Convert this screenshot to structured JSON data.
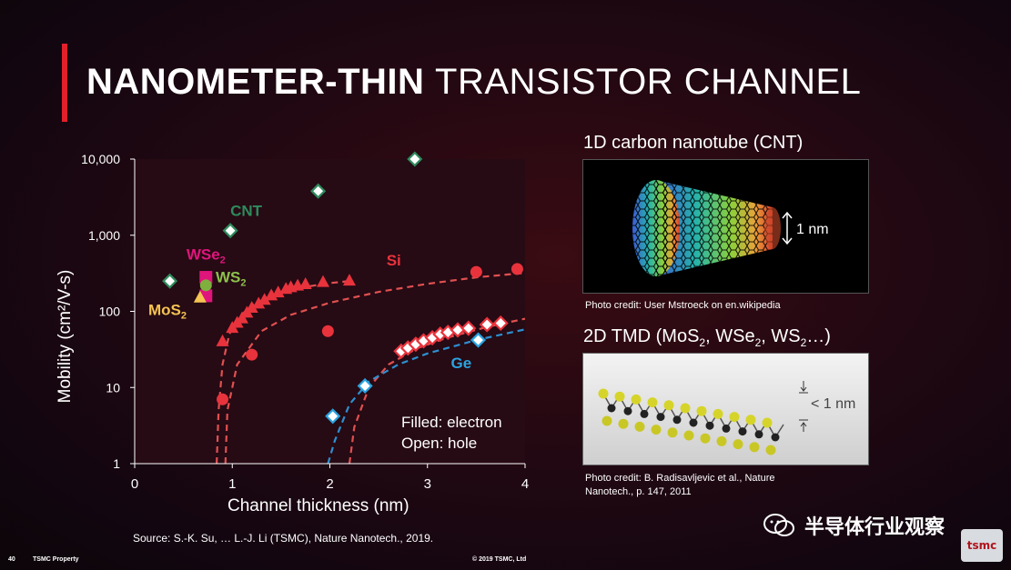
{
  "slide": {
    "title_bold": "NANOMETER-THIN",
    "title_light": "TRANSISTOR CHANNEL",
    "accent_color": "#e0202a"
  },
  "chart_data": {
    "type": "scatter",
    "xlabel": "Channel thickness (nm)",
    "ylabel": "Mobility (cm²/V-s)",
    "xlim": [
      0,
      4
    ],
    "ylim": [
      1,
      10000
    ],
    "yscale": "log",
    "x_ticks": [
      "0",
      "1",
      "2",
      "3",
      "4"
    ],
    "y_ticks": [
      "1",
      "10",
      "100",
      "1,000",
      "10,000"
    ],
    "grid": false,
    "annotation": [
      "Filled: electron",
      "Open: hole"
    ],
    "series": [
      {
        "name": "CNT",
        "color": "#2e8a5c",
        "marker": "diamond-open",
        "points": [
          [
            0.36,
            250
          ],
          [
            0.98,
            1150
          ],
          [
            1.88,
            3800
          ],
          [
            2.87,
            10000
          ]
        ]
      },
      {
        "name": "WSe2",
        "color": "#e0157c",
        "marker": "square",
        "points": [
          [
            0.73,
            280
          ],
          [
            0.73,
            160
          ]
        ]
      },
      {
        "name": "WS2",
        "color": "#7fb03e",
        "marker": "circle",
        "points": [
          [
            0.73,
            220
          ]
        ]
      },
      {
        "name": "MoS2",
        "color": "#f5c452",
        "marker": "triangle",
        "points": [
          [
            0.67,
            150
          ]
        ]
      },
      {
        "name": "Si",
        "color": "#e8333c",
        "marker": "triangle",
        "points": [
          [
            0.9,
            40
          ],
          [
            1.0,
            60
          ],
          [
            1.05,
            70
          ],
          [
            1.1,
            80
          ],
          [
            1.15,
            95
          ],
          [
            1.2,
            110
          ],
          [
            1.27,
            125
          ],
          [
            1.33,
            140
          ],
          [
            1.4,
            160
          ],
          [
            1.47,
            175
          ],
          [
            1.55,
            195
          ],
          [
            1.6,
            205
          ],
          [
            1.67,
            215
          ],
          [
            1.75,
            225
          ],
          [
            1.93,
            240
          ],
          [
            2.2,
            250
          ]
        ]
      },
      {
        "name": "Si",
        "color": "#e8333c",
        "marker": "circle",
        "points": [
          [
            0.9,
            7
          ],
          [
            1.2,
            27
          ],
          [
            1.98,
            55
          ],
          [
            3.5,
            330
          ],
          [
            3.92,
            360
          ]
        ]
      },
      {
        "name": "Si",
        "color": "#e8333c",
        "marker": "diamond-open",
        "points": [
          [
            2.73,
            30
          ],
          [
            2.8,
            33
          ],
          [
            2.88,
            37
          ],
          [
            2.96,
            41
          ],
          [
            3.05,
            45
          ],
          [
            3.13,
            50
          ],
          [
            3.21,
            53
          ],
          [
            3.31,
            57
          ],
          [
            3.42,
            60
          ],
          [
            3.61,
            67
          ],
          [
            3.75,
            70
          ]
        ]
      },
      {
        "name": "Ge",
        "color": "#2aa3e0",
        "marker": "diamond-open",
        "points": [
          [
            2.03,
            4.2
          ],
          [
            2.36,
            10.5
          ],
          [
            3.52,
            42
          ]
        ]
      }
    ],
    "fits": [
      {
        "name": "Si",
        "color": "#e05050",
        "points": [
          [
            0.84,
            1
          ],
          [
            0.86,
            5
          ],
          [
            0.9,
            20
          ],
          [
            0.97,
            50
          ],
          [
            1.05,
            80
          ],
          [
            1.2,
            120
          ],
          [
            1.4,
            160
          ],
          [
            1.7,
            205
          ],
          [
            2.0,
            235
          ],
          [
            2.2,
            250
          ]
        ]
      },
      {
        "name": "Si",
        "color": "#e05050",
        "points": [
          [
            0.93,
            1
          ],
          [
            0.95,
            5
          ],
          [
            1.05,
            20
          ],
          [
            1.3,
            55
          ],
          [
            1.6,
            90
          ],
          [
            2.0,
            130
          ],
          [
            2.5,
            180
          ],
          [
            3.0,
            230
          ],
          [
            3.5,
            280
          ],
          [
            4.0,
            320
          ]
        ]
      },
      {
        "name": "Si",
        "color": "#e05050",
        "points": [
          [
            2.2,
            1
          ],
          [
            2.25,
            3
          ],
          [
            2.4,
            10
          ],
          [
            2.6,
            20
          ],
          [
            2.9,
            33
          ],
          [
            3.2,
            45
          ],
          [
            3.6,
            62
          ],
          [
            4.0,
            80
          ]
        ]
      },
      {
        "name": "Ge",
        "color": "#2d8fd0",
        "points": [
          [
            1.98,
            1
          ],
          [
            2.05,
            2
          ],
          [
            2.2,
            6
          ],
          [
            2.4,
            12
          ],
          [
            2.7,
            20
          ],
          [
            3.0,
            28
          ],
          [
            3.5,
            42
          ],
          [
            4.0,
            58
          ]
        ]
      }
    ],
    "labels": [
      {
        "text": "CNT",
        "color": "#2e8a5c",
        "x": 0.98,
        "y": 1800
      },
      {
        "text": "WSe2",
        "color": "#e0157c",
        "x": 0.53,
        "y": 480
      },
      {
        "text": "WS2",
        "color": "#8cc14c",
        "x": 0.83,
        "y": 240
      },
      {
        "text": "MoS2",
        "color": "#f5c452",
        "x": 0.14,
        "y": 90
      },
      {
        "text": "Si",
        "color": "#e8333c",
        "x": 2.58,
        "y": 400
      },
      {
        "text": "Ge",
        "color": "#2aa3e0",
        "x": 3.24,
        "y": 18
      }
    ]
  },
  "cnt_panel": {
    "heading": "1D carbon nanotube (CNT)",
    "scale_label": "1 nm",
    "credit": "Photo credit: User Mstroeck on en.wikipedia"
  },
  "tmd_panel": {
    "heading_prefix": "2D TMD (MoS",
    "sub1": "2",
    "mid1": ", WSe",
    "sub2": "2",
    "mid2": ", WS",
    "sub3": "2",
    "suffix": "…)",
    "scale_label": "< 1 nm",
    "credit": "Photo credit: B. Radisavljevic et al., Nature Nanotech., p. 147, 2011"
  },
  "source": "Source: S.-K. Su, … L.-J. Li (TSMC), Nature Nanotech., 2019.",
  "footer": {
    "page": "40",
    "label": "TSMC Property",
    "copyright": "© 2019 TSMC, Ltd"
  },
  "watermark": {
    "text": "半导体行业观察",
    "icon": "wechat-icon"
  },
  "logo": {
    "text": "tsmc"
  }
}
